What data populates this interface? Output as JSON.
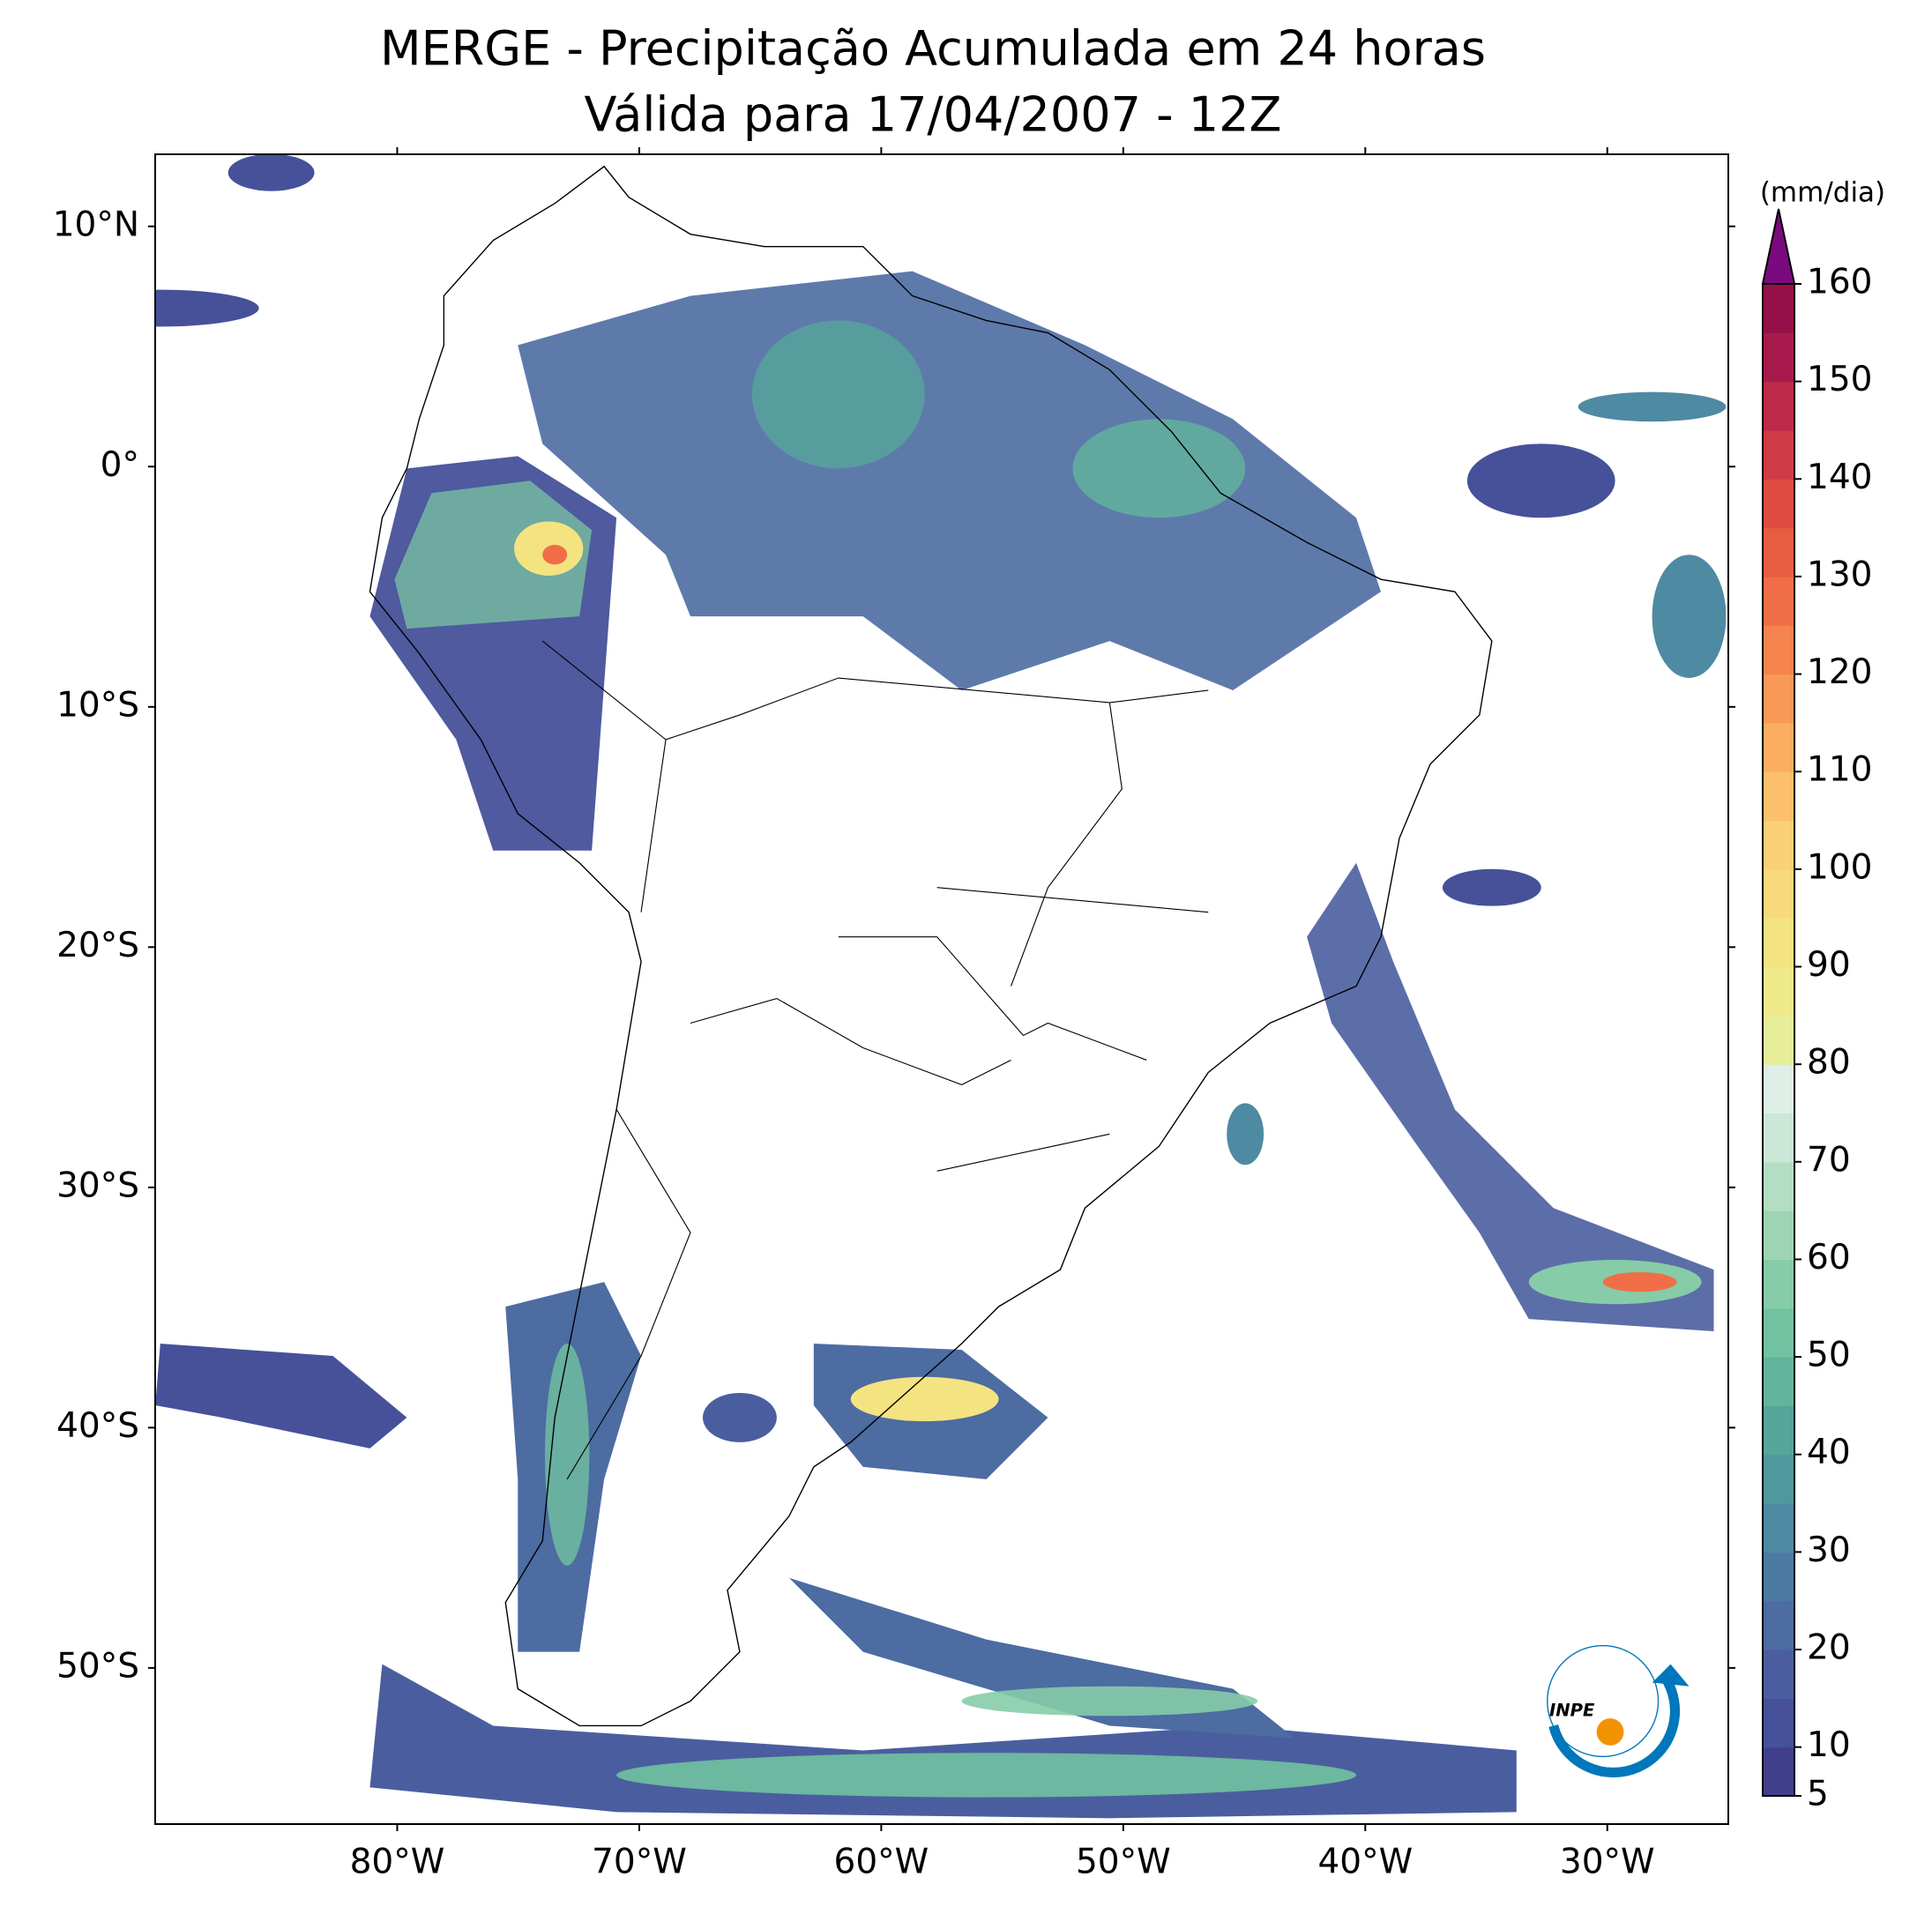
{
  "title": [
    "MERGE - Precipitação Acumulada em 24 horas",
    "Válida para 17/04/2007 - 12Z"
  ],
  "map": {
    "xlim": [
      -90,
      -25
    ],
    "ylim": [
      -56.5,
      13
    ],
    "lat_ticks": [
      {
        "value": 10,
        "label": "10°N"
      },
      {
        "value": 0,
        "label": "0°"
      },
      {
        "value": -10,
        "label": "10°S"
      },
      {
        "value": -20,
        "label": "20°S"
      },
      {
        "value": -30,
        "label": "30°S"
      },
      {
        "value": -40,
        "label": "40°S"
      },
      {
        "value": -50,
        "label": "50°S"
      }
    ],
    "lon_ticks": [
      {
        "value": -80,
        "label": "80°W"
      },
      {
        "value": -70,
        "label": "70°W"
      },
      {
        "value": -60,
        "label": "60°W"
      },
      {
        "value": -50,
        "label": "50°W"
      },
      {
        "value": -40,
        "label": "40°W"
      },
      {
        "value": -30,
        "label": "30°W"
      }
    ]
  },
  "colorbar": {
    "label": "(mm/dia)",
    "lim": [
      5,
      160
    ],
    "ticks": [
      5,
      10,
      20,
      30,
      40,
      50,
      60,
      70,
      80,
      90,
      100,
      110,
      120,
      130,
      140,
      150,
      160
    ],
    "colors": [
      "#413f8c",
      "#46519a",
      "#4a5e9f",
      "#4c6ca2",
      "#4d7aa3",
      "#4e8aa2",
      "#4f989e",
      "#55a69b",
      "#62b59c",
      "#71c2a0",
      "#86cca8",
      "#9dd5b4",
      "#b3dec4",
      "#cbe7d8",
      "#dfefe8",
      "#e6ee9a",
      "#eeea89",
      "#f4e381",
      "#f8da7b",
      "#fbd076",
      "#fcc06a",
      "#fbae60",
      "#f89957",
      "#f5844e",
      "#f06e47",
      "#e85c41",
      "#df4b41",
      "#d13b47",
      "#bd2a4a",
      "#a81a4b",
      "#951048"
    ],
    "extend_color": "#7b0a7e"
  },
  "logo": "INPE"
}
